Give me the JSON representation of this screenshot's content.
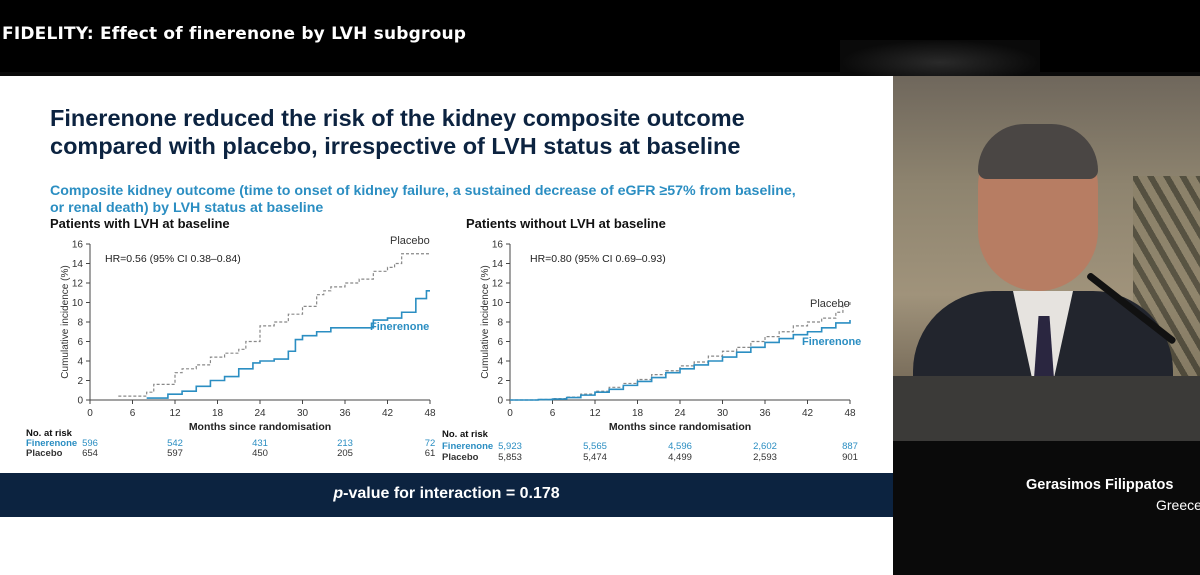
{
  "session_title": "FIDELITY: Effect of finerenone by LVH subgroup",
  "slide": {
    "title_line1": "Finerenone reduced the risk of the kidney composite outcome",
    "title_line2": "compared with placebo, irrespective of LVH status at baseline",
    "subtitle_line1": "Composite kidney outcome (time to onset of kidney failure, a sustained decrease of eGFR ≥57% from baseline,",
    "subtitle_line2": "or renal death) by LVH status at baseline",
    "p_value_prefix": "p",
    "p_value_text": "-value for interaction = 0.178"
  },
  "speaker": {
    "name": "Gerasimos Filippatos",
    "country": "Greece"
  },
  "colors": {
    "finerenone": "#2b8ec2",
    "placebo": "#888888",
    "navy": "#0c2340"
  },
  "chart_data": [
    {
      "type": "line",
      "panel_title": "Patients with LVH at baseline",
      "hr_text": "HR=0.56 (95% CI 0.38–0.84)",
      "xlabel": "Months since randomisation",
      "ylabel": "Cumulative incidence (%)",
      "xlim": [
        0,
        48
      ],
      "ylim": [
        0,
        16
      ],
      "xticks": [
        0,
        6,
        12,
        18,
        24,
        30,
        36,
        42,
        48
      ],
      "yticks": [
        0,
        2,
        4,
        6,
        8,
        10,
        12,
        14,
        16
      ],
      "series": [
        {
          "name": "Placebo",
          "style": "dashed",
          "color": "#888888",
          "x": [
            4,
            8,
            9,
            12,
            13,
            15,
            17,
            19,
            21,
            22,
            24,
            26,
            28,
            30,
            32,
            33,
            34,
            36,
            38,
            40,
            42,
            43,
            44,
            47,
            48
          ],
          "y": [
            0.4,
            0.8,
            1.6,
            2.8,
            3.2,
            3.6,
            4.4,
            4.8,
            5.2,
            6.0,
            7.6,
            8.0,
            8.8,
            9.6,
            10.8,
            11.2,
            11.6,
            12.0,
            12.4,
            13.2,
            13.6,
            14.0,
            15.0,
            15.0,
            15.0
          ]
        },
        {
          "name": "Finerenone",
          "style": "solid",
          "color": "#2b8ec2",
          "x": [
            8,
            11,
            13,
            15,
            17,
            19,
            21,
            23,
            24,
            26,
            28,
            29,
            30,
            32,
            34,
            36,
            38,
            40,
            42,
            44,
            46,
            47.5,
            48
          ],
          "y": [
            0.2,
            0.6,
            0.9,
            1.4,
            2.0,
            2.4,
            3.2,
            3.8,
            4.0,
            4.2,
            5.0,
            6.2,
            6.6,
            7.0,
            7.4,
            7.4,
            7.4,
            8.2,
            8.4,
            9.0,
            10.4,
            11.2,
            11.2
          ]
        }
      ],
      "risk_table": {
        "header": "No. at risk",
        "x": [
          0,
          12,
          24,
          36,
          48
        ],
        "rows": [
          {
            "label": "Finerenone",
            "values": [
              "596",
              "542",
              "431",
              "213",
              "72"
            ]
          },
          {
            "label": "Placebo",
            "values": [
              "654",
              "597",
              "450",
              "205",
              "61"
            ]
          }
        ]
      }
    },
    {
      "type": "line",
      "panel_title": "Patients without LVH at baseline",
      "hr_text": "HR=0.80 (95% CI 0.69–0.93)",
      "xlabel": "Months since randomisation",
      "ylabel": "Cumulative incidence (%)",
      "xlim": [
        0,
        48
      ],
      "ylim": [
        0,
        16
      ],
      "xticks": [
        0,
        6,
        12,
        18,
        24,
        30,
        36,
        42,
        48
      ],
      "yticks": [
        0,
        2,
        4,
        6,
        8,
        10,
        12,
        14,
        16
      ],
      "series": [
        {
          "name": "Placebo",
          "style": "dashed",
          "color": "#888888",
          "x": [
            0,
            4,
            6,
            8,
            10,
            12,
            14,
            16,
            18,
            20,
            22,
            24,
            26,
            28,
            30,
            32,
            34,
            36,
            38,
            40,
            42,
            44,
            46,
            47,
            48
          ],
          "y": [
            0,
            0.05,
            0.15,
            0.3,
            0.6,
            0.9,
            1.3,
            1.7,
            2.1,
            2.6,
            3.0,
            3.5,
            3.9,
            4.5,
            5.0,
            5.4,
            6.0,
            6.5,
            7.0,
            7.6,
            8.0,
            8.4,
            9.0,
            9.8,
            10.2
          ]
        },
        {
          "name": "Finerenone",
          "style": "solid",
          "color": "#2b8ec2",
          "x": [
            0,
            4,
            6,
            8,
            10,
            12,
            14,
            16,
            18,
            20,
            22,
            24,
            26,
            28,
            30,
            32,
            34,
            36,
            38,
            40,
            42,
            44,
            46,
            48
          ],
          "y": [
            0,
            0.05,
            0.1,
            0.25,
            0.5,
            0.8,
            1.1,
            1.5,
            1.9,
            2.3,
            2.8,
            3.2,
            3.6,
            4.0,
            4.4,
            4.9,
            5.4,
            5.9,
            6.3,
            6.7,
            7.0,
            7.4,
            7.9,
            8.2
          ]
        }
      ],
      "risk_table": {
        "header": "No. at risk",
        "x": [
          0,
          12,
          24,
          36,
          48
        ],
        "rows": [
          {
            "label": "Finerenone",
            "values": [
              "5,923",
              "5,565",
              "4,596",
              "2,602",
              "887"
            ]
          },
          {
            "label": "Placebo",
            "values": [
              "5,853",
              "5,474",
              "4,499",
              "2,593",
              "901"
            ]
          }
        ]
      }
    }
  ]
}
